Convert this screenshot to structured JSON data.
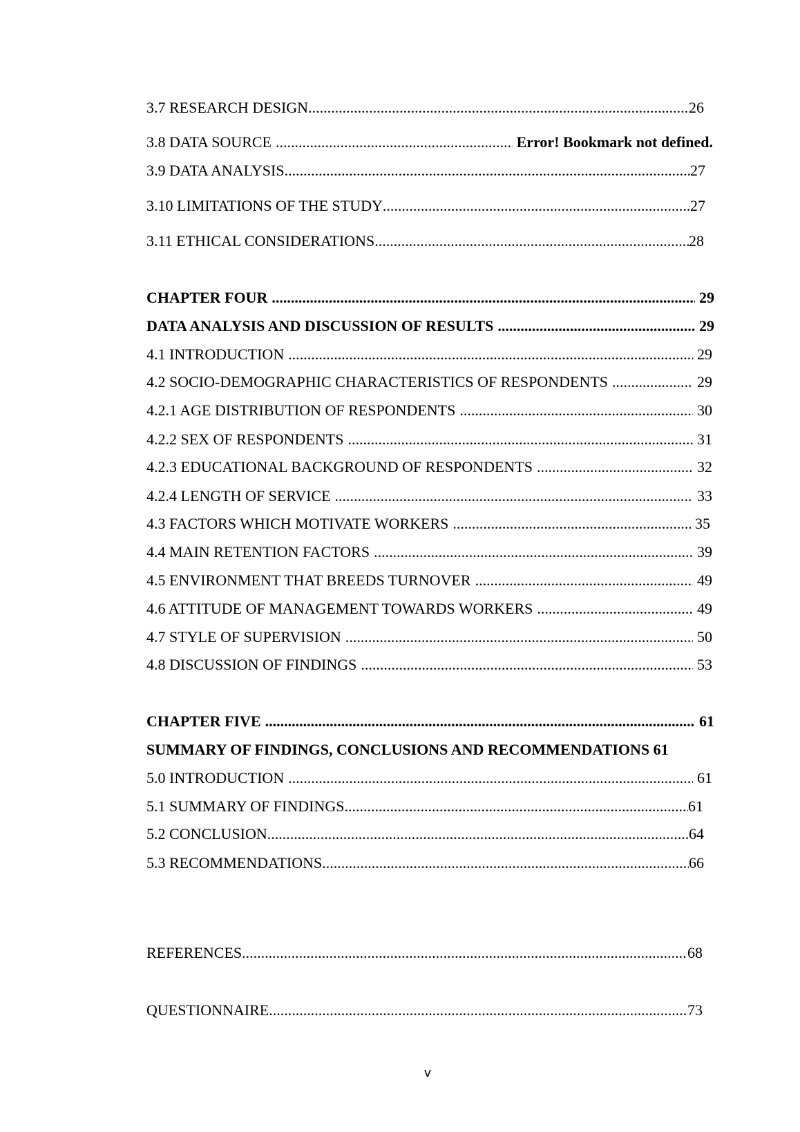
{
  "toc": [
    {
      "title": "3.7 RESEARCH DESIGN",
      "page": "26"
    },
    {
      "title": "3.8 DATA SOURCE",
      "page": "Error! Bookmark not defined."
    },
    {
      "title": "3.9 DATA ANALYSIS",
      "page": "27"
    },
    {
      "title": "3.10 LIMITATIONS OF THE STUDY",
      "page": "27"
    },
    {
      "title": "3.11 ETHICAL CONSIDERATIONS",
      "page": "28"
    },
    {
      "title": "CHAPTER FOUR",
      "page": "29"
    },
    {
      "title": "DATA ANALYSIS AND DISCUSSION OF RESULTS",
      "page": "29"
    },
    {
      "title": "4.1 INTRODUCTION",
      "page": "29"
    },
    {
      "title": "4.2 SOCIO-DEMOGRAPHIC CHARACTERISTICS OF RESPONDENTS",
      "page": "29"
    },
    {
      "title": "4.2.1 AGE DISTRIBUTION OF RESPONDENTS",
      "page": "30"
    },
    {
      "title": "4.2.2 SEX OF RESPONDENTS",
      "page": "31"
    },
    {
      "title": "4.2.3 EDUCATIONAL BACKGROUND OF RESPONDENTS",
      "page": "32"
    },
    {
      "title": "4.2.4 LENGTH OF SERVICE",
      "page": "33"
    },
    {
      "title": "4.3 FACTORS WHICH MOTIVATE WORKERS",
      "page": "35"
    },
    {
      "title": "4.4 MAIN RETENTION FACTORS",
      "page": "39"
    },
    {
      "title": "4.5 ENVIRONMENT THAT BREEDS TURNOVER",
      "page": "49"
    },
    {
      "title": "4.6 ATTITUDE OF MANAGEMENT TOWARDS WORKERS",
      "page": "49"
    },
    {
      "title": "4.7 STYLE OF SUPERVISION",
      "page": "50"
    },
    {
      "title": "4.8 DISCUSSION OF FINDINGS",
      "page": "53"
    },
    {
      "title": "CHAPTER FIVE",
      "page": "61"
    },
    {
      "title": "SUMMARY OF FINDINGS, CONCLUSIONS AND RECOMMENDATIONS",
      "page": "61"
    },
    {
      "title": "5.0 INTRODUCTION",
      "page": "61"
    },
    {
      "title": "5.1 SUMMARY OF FINDINGS",
      "page": "61"
    },
    {
      "title": "5.2 CONCLUSION",
      "page": "64"
    },
    {
      "title": "5.3 RECOMMENDATIONS",
      "page": "66"
    },
    {
      "title": "REFERENCES",
      "page": "68"
    },
    {
      "title": "QUESTIONNAIRE",
      "page": "73"
    }
  ],
  "page_number": "v"
}
